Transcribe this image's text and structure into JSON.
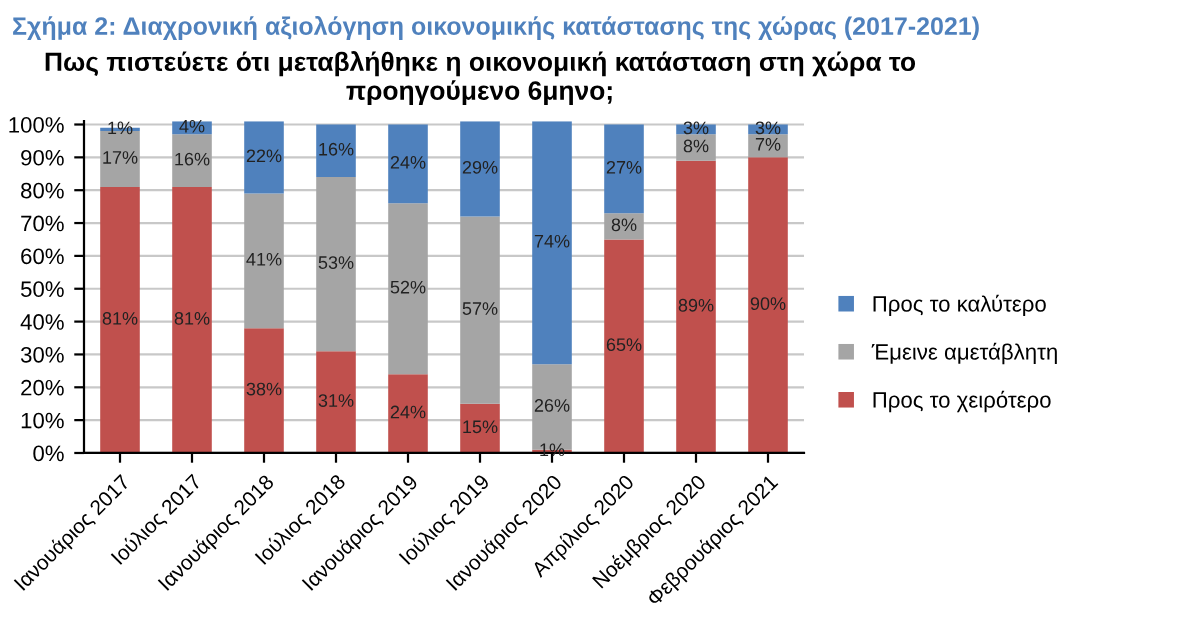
{
  "chart_data": {
    "type": "bar",
    "stacked": true,
    "title": "Σχήμα 2: Διαχρονική αξιολόγηση οικονομικής κατάστασης της χώρας (2017-2021)",
    "subtitle": "Πως πιστεύετε ότι μεταβλήθηκε η οικονομική κατάσταση στη χώρα το προηγούμενο 6μηνο;",
    "categories": [
      "Ιανουάριος 2017",
      "Ιούλιος 2017",
      "Ιανουάριος 2018",
      "Ιούλιος 2018",
      "Ιανουάριος 2019",
      "Ιούλιος 2019",
      "Ιανουάριος 2020",
      "Απρίλιος 2020",
      "Νοέμβριος 2020",
      "Φεβρουάριος 2021"
    ],
    "series": [
      {
        "name": "Προς το χειρότερο",
        "color": "#c0504d",
        "values": [
          81,
          81,
          38,
          31,
          24,
          15,
          1,
          65,
          89,
          90
        ],
        "value_labels": [
          "81%",
          "81%",
          "38%",
          "31%",
          "24%",
          "15%",
          "1%",
          "65%",
          "89%",
          "90%"
        ]
      },
      {
        "name": "Έμεινε αμετάβλητη",
        "color": "#a5a5a5",
        "values": [
          17,
          16,
          41,
          53,
          52,
          57,
          26,
          8,
          8,
          7
        ],
        "value_labels": [
          "17%",
          "16%",
          "41%",
          "53%",
          "52%",
          "57%",
          "26%",
          "8%",
          "8%",
          "7%"
        ]
      },
      {
        "name": "Προς το καλύτερο",
        "color": "#4f81bd",
        "values": [
          1,
          4,
          22,
          16,
          24,
          29,
          74,
          27,
          3,
          3
        ],
        "value_labels": [
          "1%",
          "4%",
          "22%",
          "16%",
          "24%",
          "29%",
          "74%",
          "27%",
          "3%",
          "3%"
        ]
      }
    ],
    "ylim": [
      0,
      101
    ],
    "yticks": [
      {
        "value": 0,
        "label": "0%"
      },
      {
        "value": 10,
        "label": "10%"
      },
      {
        "value": 20,
        "label": "20%"
      },
      {
        "value": 30,
        "label": "30%"
      },
      {
        "value": 40,
        "label": "40%"
      },
      {
        "value": 50,
        "label": "50%"
      },
      {
        "value": 60,
        "label": "60%"
      },
      {
        "value": 70,
        "label": "70%"
      },
      {
        "value": 80,
        "label": "80%"
      },
      {
        "value": 90,
        "label": "90%"
      },
      {
        "value": 100,
        "label": "100%"
      }
    ],
    "grid": "y",
    "legend": "right"
  }
}
